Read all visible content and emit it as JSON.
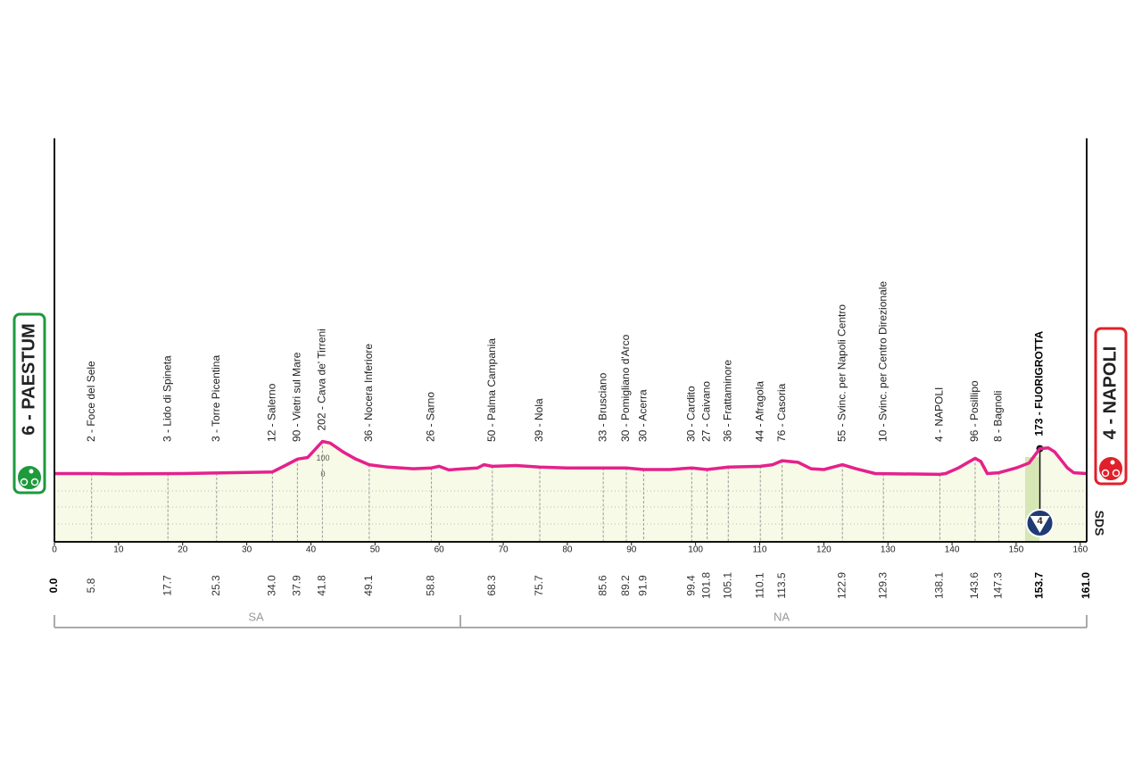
{
  "chart_data": {
    "type": "line",
    "start": {
      "label": "6 - PAESTUM"
    },
    "finish": {
      "label": "4 - NAPOLI"
    },
    "finish_marker": "4",
    "brand": "SDS",
    "regions": [
      "SA",
      "NA"
    ],
    "xlim": [
      0,
      161
    ],
    "xticks": [
      0,
      10,
      20,
      30,
      40,
      50,
      60,
      70,
      80,
      90,
      100,
      110,
      120,
      130,
      140,
      150,
      160
    ],
    "ylim": [
      -420,
      2091
    ],
    "yticks": [
      0,
      100
    ],
    "color": "#e5218b",
    "fill": "#f7fae6",
    "x": [
      0,
      5.8,
      10,
      20,
      34,
      36,
      37.9,
      39.5,
      41.8,
      43,
      45,
      47,
      49.1,
      52,
      56,
      58.8,
      60,
      61.5,
      64,
      66,
      67,
      68.3,
      72,
      75.7,
      80,
      85.6,
      89.2,
      91.9,
      96,
      99.4,
      101.8,
      105.1,
      110.1,
      112,
      113.5,
      116,
      118,
      120,
      122.9,
      125,
      128,
      138.1,
      139,
      141,
      143.6,
      144.5,
      145.5,
      147.3,
      150,
      152,
      153.7,
      155,
      156,
      158,
      159,
      161
    ],
    "values": [
      5,
      5,
      3,
      5,
      15,
      55,
      95,
      105,
      205,
      195,
      140,
      95,
      60,
      45,
      35,
      40,
      50,
      28,
      35,
      40,
      60,
      50,
      55,
      45,
      40,
      40,
      40,
      30,
      30,
      40,
      30,
      45,
      50,
      60,
      85,
      75,
      35,
      30,
      60,
      35,
      5,
      0,
      5,
      40,
      100,
      80,
      5,
      10,
      40,
      70,
      160,
      165,
      140,
      40,
      10,
      5
    ],
    "waypoints": [
      {
        "km": {
          "value": 0,
          "label": "0.0"
        },
        "highlight": true
      },
      {
        "km": 5.8,
        "name": "2 - Foce del Sele"
      },
      {
        "km": 17.7,
        "name": "3 - Lido di Spineta"
      },
      {
        "km": 25.3,
        "name": "3 - Torre Picentina"
      },
      {
        "km": 34,
        "name": "12 - Salerno",
        "km_label": "34.0"
      },
      {
        "km": 37.9,
        "name": "90 - Vietri sul Mare"
      },
      {
        "km": 41.8,
        "name": "202 - Cava de' Tirreni"
      },
      {
        "km": 49.1,
        "name": "36 - Nocera Inferiore"
      },
      {
        "km": 58.8,
        "name": "26 - Sarno"
      },
      {
        "km": 68.3,
        "name": "50 - Palma Campania"
      },
      {
        "km": 75.7,
        "name": "39 - Nola"
      },
      {
        "km": 85.6,
        "name": "33 - Brusciano"
      },
      {
        "km": 89.2,
        "name": "30 - Pomigliano d'Arco"
      },
      {
        "km": 91.9,
        "name": "30 - Acerra"
      },
      {
        "km": 99.4,
        "name": "30 - Cardito"
      },
      {
        "km": 101.8,
        "name": "27 - Caivano"
      },
      {
        "km": 105.1,
        "name": "36 - Frattaminore"
      },
      {
        "km": 110.1,
        "name": "44 - Afragola"
      },
      {
        "km": 113.5,
        "name": "76 - Casoria"
      },
      {
        "km": 122.9,
        "name": "55 - Svinc. per Napoli Centro"
      },
      {
        "km": 129.3,
        "name": "10 - Svinc. per Centro Direzionale"
      },
      {
        "km": 138.1,
        "name": "4 - NAPOLI"
      },
      {
        "km": 143.6,
        "name": "96 - Posillipo"
      },
      {
        "km": 147.3,
        "name": "8 - Bagnoli"
      },
      {
        "km": 153.7,
        "name": "173 - FUORIGROTTA",
        "highlight": true
      },
      {
        "km": {
          "value": 161,
          "label": "161.0"
        },
        "highlight": true
      }
    ]
  }
}
